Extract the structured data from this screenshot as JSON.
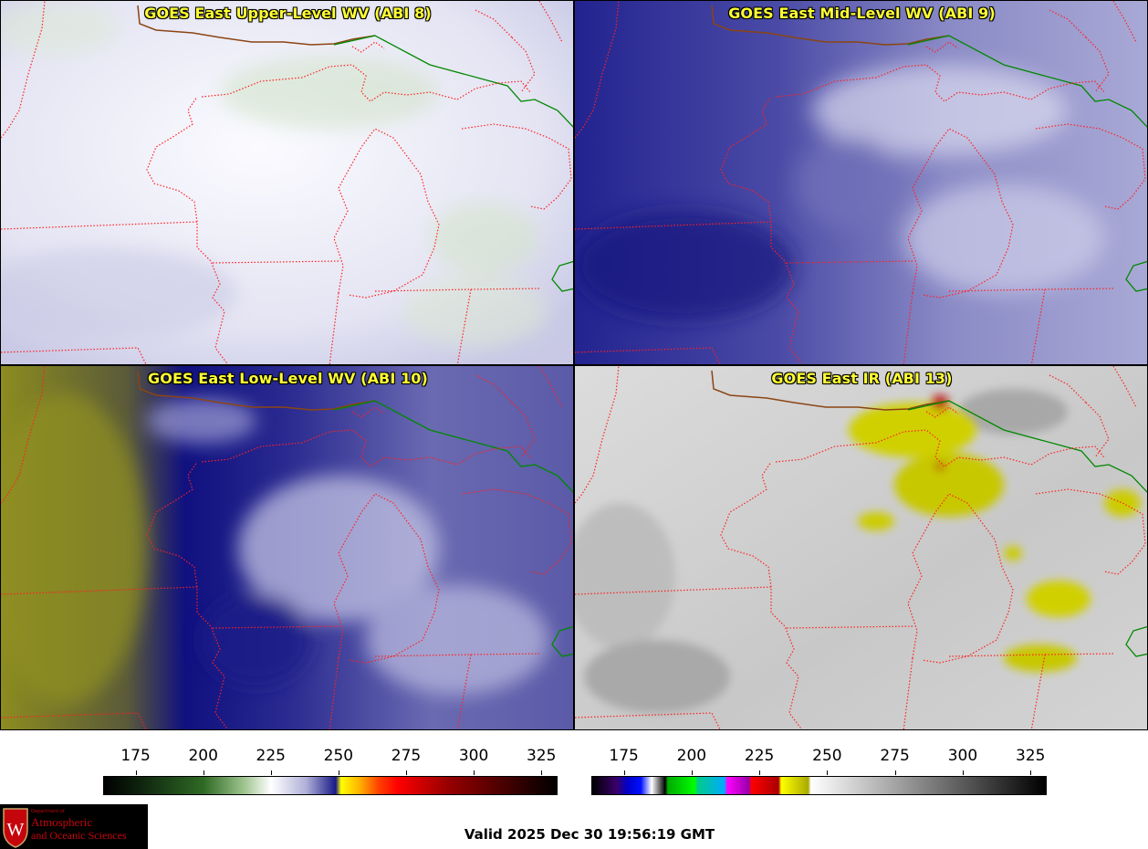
{
  "panels": [
    {
      "id": "p1",
      "title": "GOES East Upper-Level WV (ABI 8)",
      "palette": "upper"
    },
    {
      "id": "p2",
      "title": "GOES East Mid-Level WV (ABI 9)",
      "palette": "mid"
    },
    {
      "id": "p3",
      "title": "GOES East Low-Level WV (ABI 10)",
      "palette": "low"
    },
    {
      "id": "p4",
      "title": "GOES East IR (ABI 13)",
      "palette": "ir"
    }
  ],
  "colorbars": {
    "wv": {
      "ticks": [
        "175",
        "200",
        "225",
        "250",
        "275",
        "300",
        "325"
      ],
      "tick_values": [
        175,
        200,
        225,
        250,
        275,
        300,
        325
      ],
      "range": [
        163,
        331
      ],
      "stops": [
        {
          "t": 163,
          "c": "#000000"
        },
        {
          "t": 175,
          "c": "#0d200d"
        },
        {
          "t": 200,
          "c": "#2f6a24"
        },
        {
          "t": 215,
          "c": "#9fc48f"
        },
        {
          "t": 225,
          "c": "#ffffff"
        },
        {
          "t": 238,
          "c": "#b0b0d8"
        },
        {
          "t": 249,
          "c": "#1a1a88"
        },
        {
          "t": 251,
          "c": "#ffff00"
        },
        {
          "t": 258,
          "c": "#ffb000"
        },
        {
          "t": 265,
          "c": "#ff4000"
        },
        {
          "t": 272,
          "c": "#ff0000"
        },
        {
          "t": 290,
          "c": "#9a0000"
        },
        {
          "t": 315,
          "c": "#3a0000"
        },
        {
          "t": 331,
          "c": "#000000"
        }
      ]
    },
    "ir": {
      "ticks": [
        "175",
        "200",
        "225",
        "250",
        "275",
        "300",
        "325"
      ],
      "tick_values": [
        175,
        200,
        225,
        250,
        275,
        300,
        325
      ],
      "range": [
        163,
        331
      ],
      "stops": [
        {
          "t": 163,
          "c": "#000000"
        },
        {
          "t": 172,
          "c": "#3a006a"
        },
        {
          "t": 176,
          "c": "#0000c8"
        },
        {
          "t": 181,
          "c": "#0010ff"
        },
        {
          "t": 185,
          "c": "#ffffff"
        },
        {
          "t": 190,
          "c": "#000000"
        },
        {
          "t": 191,
          "c": "#00aa00"
        },
        {
          "t": 201,
          "c": "#00ff00"
        },
        {
          "t": 202,
          "c": "#00cc88"
        },
        {
          "t": 212,
          "c": "#00aaff"
        },
        {
          "t": 213,
          "c": "#ff00ff"
        },
        {
          "t": 221,
          "c": "#9900aa"
        },
        {
          "t": 222,
          "c": "#ff0000"
        },
        {
          "t": 232,
          "c": "#aa0000"
        },
        {
          "t": 233,
          "c": "#ffff00"
        },
        {
          "t": 243,
          "c": "#aaaa00"
        },
        {
          "t": 244,
          "c": "#ffffff"
        },
        {
          "t": 331,
          "c": "#000000"
        }
      ]
    }
  },
  "valid_text": "Valid 2025 Dec 30 19:56:19 GMT",
  "logo": {
    "line1": "Department of",
    "line2": "Atmospheric",
    "line3": "and Oceanic Sciences",
    "crest_letter": "W",
    "brand_color": "#c5050c"
  },
  "colors": {
    "title": "#ffff33",
    "state_border": "#ff2020",
    "coast": "#8b4513",
    "intl_border": "#008800"
  }
}
